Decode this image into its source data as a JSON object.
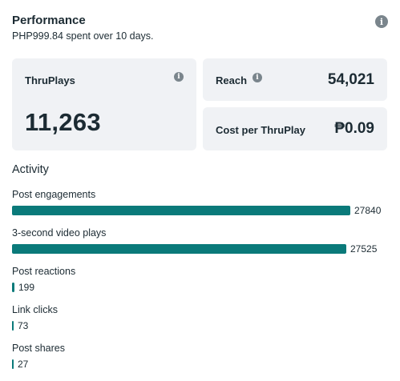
{
  "header": {
    "title": "Performance",
    "spent_amount": "PHP999.84",
    "spent_middle": " spent over ",
    "spent_days": "10 days",
    "spent_end": "."
  },
  "metrics": {
    "thruplays": {
      "label": "ThruPlays",
      "value": "11,263"
    },
    "reach": {
      "label": "Reach",
      "value": "54,021"
    },
    "cost": {
      "label": "Cost per ThruPlay",
      "value": "₱0.09"
    }
  },
  "activity": {
    "title": "Activity",
    "max": 27840,
    "items": [
      {
        "label": "Post engagements",
        "value": 27840,
        "display": "27840"
      },
      {
        "label": "3-second video plays",
        "value": 27525,
        "display": "27525"
      },
      {
        "label": "Post reactions",
        "value": 199,
        "display": "199"
      },
      {
        "label": "Link clicks",
        "value": 73,
        "display": "73"
      },
      {
        "label": "Post shares",
        "value": 27,
        "display": "27"
      }
    ]
  },
  "colors": {
    "bar": "#0a7a7a",
    "card_bg": "#f0f2f5",
    "text": "#1c2b33"
  },
  "icons": {
    "info": "info-icon"
  }
}
